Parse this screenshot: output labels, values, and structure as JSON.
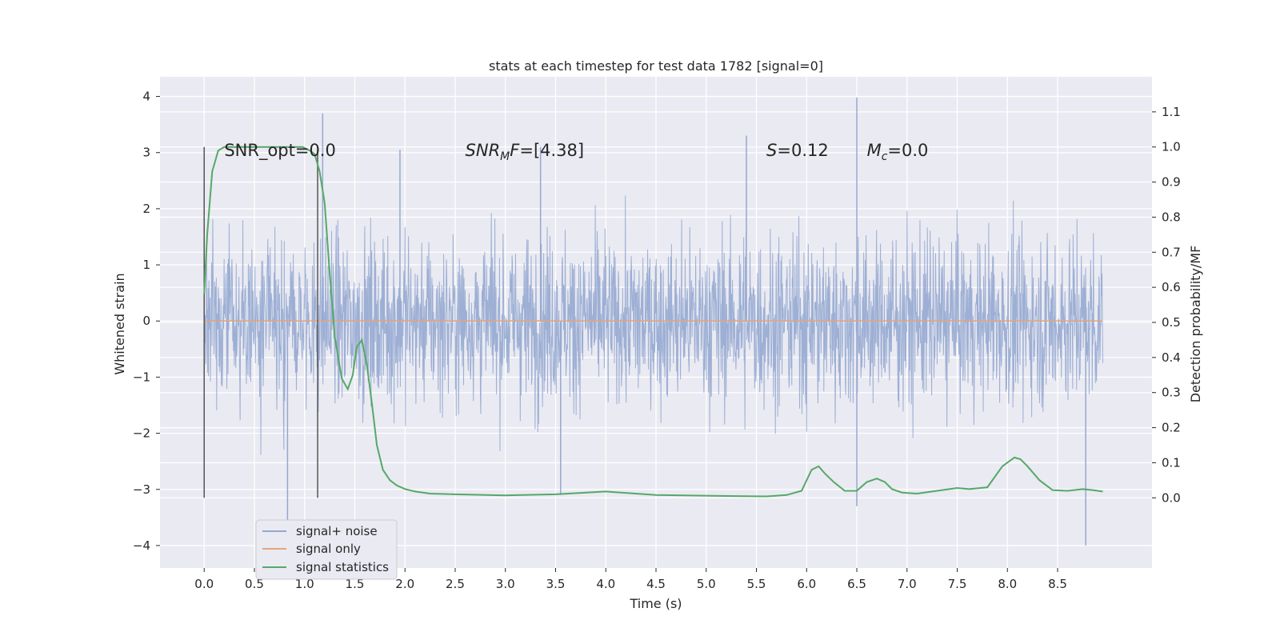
{
  "chart_data": {
    "type": "line",
    "title": "stats at each timestep for test data 1782 [signal=0]",
    "xlabel": "Time (s)",
    "ylabel_left": "Whitened strain",
    "ylabel_right": "Detection probability/MF",
    "xlim": [
      -0.44,
      9.44
    ],
    "ylim_left": [
      -4.4,
      4.35
    ],
    "ylim_right": [
      -0.2,
      1.2
    ],
    "grid": true,
    "x_ticks": [
      0.0,
      0.5,
      1.0,
      1.5,
      2.0,
      2.5,
      3.0,
      3.5,
      4.0,
      4.5,
      5.0,
      5.5,
      6.0,
      6.5,
      7.0,
      7.5,
      8.0,
      8.5
    ],
    "x_tick_labels": [
      "0.0",
      "0.5",
      "1.0",
      "1.5",
      "2.0",
      "2.5",
      "3.0",
      "3.5",
      "4.0",
      "4.5",
      "5.0",
      "5.5",
      "6.0",
      "6.5",
      "7.0",
      "7.5",
      "8.0",
      "8.5"
    ],
    "y_left_ticks": [
      4,
      3,
      2,
      1,
      0,
      -1,
      -2,
      -3,
      -4
    ],
    "y_left_tick_labels": [
      "4",
      "3",
      "2",
      "1",
      "0",
      "−1",
      "−2",
      "−3",
      "−4"
    ],
    "y_right_ticks": [
      1.1,
      1.0,
      0.9,
      0.8,
      0.7,
      0.6,
      0.5,
      0.4,
      0.3,
      0.2,
      0.1,
      0.0
    ],
    "y_right_tick_labels": [
      "1.1",
      "1.0",
      "0.9",
      "0.8",
      "0.7",
      "0.6",
      "0.5",
      "0.4",
      "0.3",
      "0.2",
      "0.1",
      "0.0"
    ],
    "annotations": [
      {
        "id": "snr-opt",
        "text": "SNR_opt=0.0",
        "x": 0.2,
        "y": 3.05
      },
      {
        "id": "snr-mf",
        "text": "SNR_MF=[4.38]",
        "base": "SNR",
        "sub": "M",
        "rest": "F=[4.38]",
        "x": 2.6,
        "y": 3.05
      },
      {
        "id": "s-value",
        "text": "S=0.12",
        "base": "S",
        "rest": "=0.12",
        "x": 5.6,
        "y": 3.05
      },
      {
        "id": "mc-value",
        "text": "Mc=0.0",
        "base": "M",
        "sub": "c",
        "rest": "=0.0",
        "x": 6.6,
        "y": 3.05
      }
    ],
    "vlines": [
      {
        "x": 0.0,
        "ymin": -3.15,
        "ymax": 3.1
      },
      {
        "x": 1.13,
        "ymin": -3.15,
        "ymax": 3.1
      }
    ],
    "series": [
      {
        "name": "signal+ noise",
        "axis": "left",
        "color": "#95a8d0",
        "description": "whitened strain noise time series, roughly Gaussian, spanning 0 to 8.95 s",
        "x_range": [
          0.0,
          8.95
        ],
        "typical_envelope": [
          -1.3,
          1.3
        ],
        "notable_peaks": [
          {
            "x": 1.18,
            "y": 3.7
          },
          {
            "x": 6.5,
            "y": 3.98
          },
          {
            "x": 6.5,
            "y": -3.3
          },
          {
            "x": 0.83,
            "y": -3.6
          },
          {
            "x": 8.78,
            "y": -4.0
          },
          {
            "x": 5.4,
            "y": 3.3
          },
          {
            "x": 3.35,
            "y": 3.1
          },
          {
            "x": 1.95,
            "y": 3.05
          },
          {
            "x": 3.55,
            "y": -3.1
          }
        ]
      },
      {
        "name": "signal only",
        "axis": "left",
        "color": "#e2a47f",
        "x": [
          0.0,
          8.95
        ],
        "y": [
          0.0,
          0.0
        ]
      },
      {
        "name": "signal statistics",
        "axis": "right",
        "color": "#55a868",
        "x": [
          0.0,
          0.03,
          0.08,
          0.14,
          0.2,
          0.3,
          0.45,
          0.6,
          0.8,
          0.98,
          1.05,
          1.1,
          1.15,
          1.2,
          1.25,
          1.3,
          1.37,
          1.43,
          1.48,
          1.52,
          1.57,
          1.62,
          1.67,
          1.72,
          1.78,
          1.85,
          1.92,
          2.0,
          2.1,
          2.25,
          2.5,
          3.0,
          3.5,
          4.0,
          4.5,
          5.0,
          5.3,
          5.6,
          5.8,
          5.95,
          6.05,
          6.12,
          6.18,
          6.27,
          6.38,
          6.5,
          6.6,
          6.7,
          6.78,
          6.85,
          6.95,
          7.1,
          7.3,
          7.5,
          7.62,
          7.8,
          7.95,
          8.07,
          8.13,
          8.2,
          8.32,
          8.45,
          8.6,
          8.75,
          8.85,
          8.95
        ],
        "y": [
          0.58,
          0.75,
          0.93,
          0.99,
          1.0,
          1.0,
          1.0,
          1.0,
          1.0,
          1.0,
          0.99,
          0.98,
          0.93,
          0.84,
          0.64,
          0.46,
          0.34,
          0.31,
          0.35,
          0.43,
          0.45,
          0.38,
          0.27,
          0.15,
          0.08,
          0.05,
          0.035,
          0.025,
          0.018,
          0.012,
          0.01,
          0.007,
          0.01,
          0.018,
          0.008,
          0.006,
          0.005,
          0.004,
          0.008,
          0.02,
          0.08,
          0.09,
          0.07,
          0.045,
          0.02,
          0.02,
          0.045,
          0.055,
          0.045,
          0.025,
          0.015,
          0.012,
          0.02,
          0.028,
          0.025,
          0.03,
          0.09,
          0.115,
          0.11,
          0.09,
          0.05,
          0.022,
          0.02,
          0.025,
          0.022,
          0.018
        ]
      }
    ],
    "legend": {
      "placement": "lower-left",
      "entries": [
        "signal+ noise",
        "signal only",
        "signal statistics"
      ]
    }
  },
  "colors": {
    "axes_background": "#eaeaf2",
    "grid": "#ffffff",
    "text": "#262626",
    "vline": "#555555"
  }
}
